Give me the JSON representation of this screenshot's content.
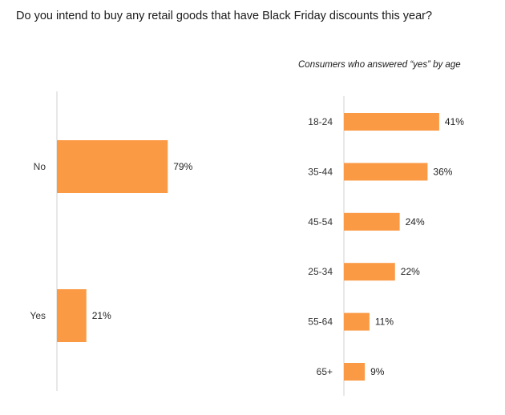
{
  "title": "Do you intend to buy any retail goods that have Black Friday discounts this year?",
  "colors": {
    "bar": "#fb9a45",
    "axis": "#d9d9d9"
  },
  "chart_data": [
    {
      "type": "bar",
      "orientation": "horizontal",
      "title": "",
      "categories": [
        "No",
        "Yes"
      ],
      "values": [
        79,
        21
      ],
      "value_labels": [
        "79%",
        "21%"
      ],
      "xlim": [
        0,
        100
      ],
      "grid": false,
      "legend": "none"
    },
    {
      "type": "bar",
      "orientation": "horizontal",
      "title": "Consumers who answered “yes” by age",
      "categories": [
        "18-24",
        "35-44",
        "45-54",
        "25-34",
        "55-64",
        "65+"
      ],
      "values": [
        41,
        36,
        24,
        22,
        11,
        9
      ],
      "value_labels": [
        "41%",
        "36%",
        "24%",
        "22%",
        "11%",
        "9%"
      ],
      "xlim": [
        0,
        100
      ],
      "grid": false,
      "legend": "none"
    }
  ]
}
